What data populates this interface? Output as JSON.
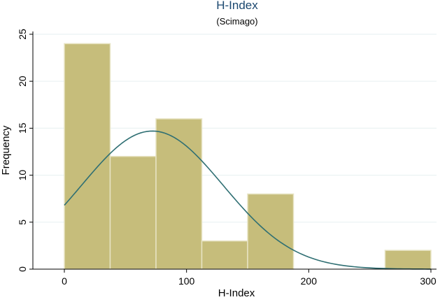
{
  "chart_data": {
    "type": "bar",
    "title": "H-Index",
    "subtitle": "(Scimago)",
    "xlabel": "H-Index",
    "ylabel": "Frequency",
    "xlim": [
      0,
      300
    ],
    "ylim": [
      0,
      25
    ],
    "xticks": [
      0,
      100,
      200,
      300
    ],
    "yticks": [
      0,
      5,
      10,
      15,
      20,
      25
    ],
    "grid": true,
    "bins": [
      {
        "start": 0,
        "end": 37.5,
        "value": 24
      },
      {
        "start": 37.5,
        "end": 75,
        "value": 12
      },
      {
        "start": 75,
        "end": 112.5,
        "value": 16
      },
      {
        "start": 112.5,
        "end": 150,
        "value": 3
      },
      {
        "start": 150,
        "end": 187.5,
        "value": 8
      },
      {
        "start": 187.5,
        "end": 225,
        "value": 0
      },
      {
        "start": 225,
        "end": 262.5,
        "value": 0
      },
      {
        "start": 262.5,
        "end": 300,
        "value": 2
      }
    ],
    "normal_curve": {
      "mean": 72,
      "sd": 58,
      "peak": 14.7,
      "points": [
        [
          0,
          8.3
        ],
        [
          25,
          11.6
        ],
        [
          50,
          14.1
        ],
        [
          72,
          14.7
        ],
        [
          100,
          13.1
        ],
        [
          125,
          9.8
        ],
        [
          150,
          6.2
        ],
        [
          175,
          3.2
        ],
        [
          200,
          1.3
        ],
        [
          225,
          0.46
        ],
        [
          250,
          0.13
        ],
        [
          275,
          0.03
        ],
        [
          300,
          0.01
        ]
      ]
    },
    "colors": {
      "bar_fill": "#c6bd7b",
      "bar_edge": "#e7e3c3",
      "curve": "#2f6f73",
      "title": "#1a476f",
      "grid": "#eaf2f3"
    }
  }
}
